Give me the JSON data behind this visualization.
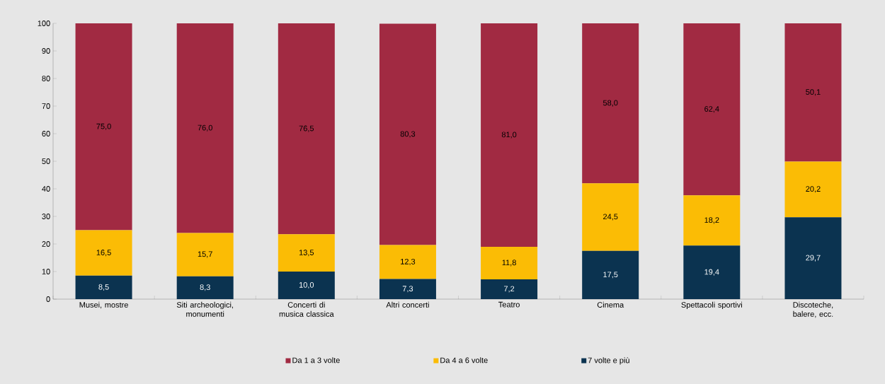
{
  "chart_data": {
    "type": "bar",
    "stacked": true,
    "categories": [
      "Musei, mostre",
      "Siti archeologici, monumenti",
      "Concerti di musica classica",
      "Altri concerti",
      "Teatro",
      "Cinema",
      "Spettacoli sportivi",
      "Discoteche, balere, ecc."
    ],
    "series": [
      {
        "name": "7 volte e più",
        "color": "#0b3350",
        "values": [
          8.5,
          8.3,
          10.0,
          7.3,
          7.2,
          17.5,
          19.4,
          29.7
        ],
        "value_labels": [
          "8,5",
          "8,3",
          "10,0",
          "7,3",
          "7,2",
          "17,5",
          "19,4",
          "29,7"
        ]
      },
      {
        "name": "Da 4 a 6 volte",
        "color": "#fbbc05",
        "values": [
          16.5,
          15.7,
          13.5,
          12.3,
          11.8,
          24.5,
          18.2,
          20.2
        ],
        "value_labels": [
          "16,5",
          "15,7",
          "13,5",
          "12,3",
          "11,8",
          "24,5",
          "18,2",
          "20,2"
        ]
      },
      {
        "name": "Da 1 a 3 volte",
        "color": "#a12a42",
        "values": [
          75.0,
          76.0,
          76.5,
          80.3,
          81.0,
          58.0,
          62.4,
          50.1
        ],
        "value_labels": [
          "75,0",
          "76,0",
          "76,5",
          "80,3",
          "81,0",
          "58,0",
          "62,4",
          "50,1"
        ]
      }
    ],
    "ylim": [
      0,
      100
    ],
    "yticks": [
      0,
      10,
      20,
      30,
      40,
      50,
      60,
      70,
      80,
      90,
      100
    ],
    "legend": "bottom",
    "grid": false
  }
}
